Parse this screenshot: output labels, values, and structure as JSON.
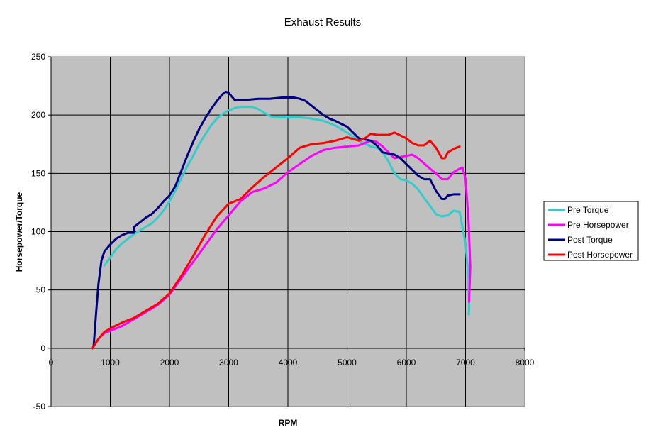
{
  "chart_data": {
    "type": "line",
    "title": "Exhaust Results",
    "xlabel": "RPM",
    "ylabel": "Horsepower/Torque",
    "xlim": [
      0,
      8000
    ],
    "ylim": [
      -50,
      250
    ],
    "x_ticks": [
      0,
      1000,
      2000,
      3000,
      4000,
      5000,
      6000,
      7000,
      8000
    ],
    "y_ticks": [
      -50,
      0,
      50,
      100,
      150,
      200,
      250
    ],
    "grid": true,
    "plot_background": "#c0c0c0",
    "legend_position": "right",
    "series": [
      {
        "name": "Pre Torque",
        "color": "#33cccc",
        "points": [
          [
            900,
            71
          ],
          [
            1000,
            78
          ],
          [
            1100,
            85
          ],
          [
            1200,
            90
          ],
          [
            1300,
            94
          ],
          [
            1400,
            98
          ],
          [
            1500,
            101
          ],
          [
            1600,
            104
          ],
          [
            1700,
            107
          ],
          [
            1800,
            112
          ],
          [
            1900,
            118
          ],
          [
            2000,
            126
          ],
          [
            2100,
            135
          ],
          [
            2200,
            146
          ],
          [
            2300,
            156
          ],
          [
            2400,
            165
          ],
          [
            2500,
            175
          ],
          [
            2600,
            183
          ],
          [
            2700,
            191
          ],
          [
            2800,
            197
          ],
          [
            2900,
            201
          ],
          [
            3000,
            204
          ],
          [
            3100,
            206
          ],
          [
            3200,
            207
          ],
          [
            3300,
            207
          ],
          [
            3400,
            207
          ],
          [
            3500,
            205
          ],
          [
            3600,
            202
          ],
          [
            3700,
            199
          ],
          [
            3800,
            198
          ],
          [
            4000,
            198
          ],
          [
            4200,
            198
          ],
          [
            4400,
            197
          ],
          [
            4600,
            195
          ],
          [
            4800,
            191
          ],
          [
            5000,
            185
          ],
          [
            5200,
            178
          ],
          [
            5400,
            173
          ],
          [
            5500,
            172
          ],
          [
            5600,
            168
          ],
          [
            5700,
            160
          ],
          [
            5800,
            150
          ],
          [
            5900,
            145
          ],
          [
            6000,
            144
          ],
          [
            6100,
            141
          ],
          [
            6200,
            136
          ],
          [
            6300,
            129
          ],
          [
            6400,
            122
          ],
          [
            6500,
            115
          ],
          [
            6600,
            113
          ],
          [
            6700,
            114
          ],
          [
            6800,
            118
          ],
          [
            6900,
            117
          ],
          [
            7000,
            90
          ],
          [
            7050,
            60
          ],
          [
            7060,
            35
          ],
          [
            7055,
            29
          ]
        ]
      },
      {
        "name": "Pre Horsepower",
        "color": "#ff00ff",
        "points": [
          [
            700,
            0
          ],
          [
            800,
            8
          ],
          [
            900,
            13
          ],
          [
            1000,
            15
          ],
          [
            1200,
            19
          ],
          [
            1400,
            25
          ],
          [
            1600,
            31
          ],
          [
            1800,
            37
          ],
          [
            2000,
            46
          ],
          [
            2200,
            60
          ],
          [
            2400,
            74
          ],
          [
            2600,
            88
          ],
          [
            2800,
            102
          ],
          [
            3000,
            114
          ],
          [
            3200,
            126
          ],
          [
            3400,
            134
          ],
          [
            3600,
            137
          ],
          [
            3800,
            142
          ],
          [
            4000,
            151
          ],
          [
            4200,
            158
          ],
          [
            4400,
            165
          ],
          [
            4600,
            170
          ],
          [
            4800,
            172
          ],
          [
            5000,
            173
          ],
          [
            5200,
            174
          ],
          [
            5400,
            178
          ],
          [
            5500,
            177
          ],
          [
            5600,
            173
          ],
          [
            5800,
            163
          ],
          [
            6000,
            165
          ],
          [
            6100,
            166
          ],
          [
            6200,
            163
          ],
          [
            6400,
            154
          ],
          [
            6500,
            150
          ],
          [
            6600,
            145
          ],
          [
            6700,
            145
          ],
          [
            6800,
            151
          ],
          [
            6900,
            154
          ],
          [
            6950,
            155
          ],
          [
            7000,
            145
          ],
          [
            7050,
            110
          ],
          [
            7080,
            70
          ],
          [
            7060,
            40
          ]
        ]
      },
      {
        "name": "Post Torque",
        "color": "#000080",
        "points": [
          [
            720,
            2
          ],
          [
            760,
            30
          ],
          [
            800,
            55
          ],
          [
            850,
            75
          ],
          [
            900,
            83
          ],
          [
            1000,
            89
          ],
          [
            1100,
            94
          ],
          [
            1200,
            97
          ],
          [
            1300,
            99
          ],
          [
            1400,
            99
          ],
          [
            1400,
            104
          ],
          [
            1500,
            108
          ],
          [
            1600,
            112
          ],
          [
            1700,
            115
          ],
          [
            1800,
            120
          ],
          [
            1900,
            126
          ],
          [
            2000,
            131
          ],
          [
            2100,
            139
          ],
          [
            2200,
            152
          ],
          [
            2300,
            165
          ],
          [
            2400,
            177
          ],
          [
            2500,
            188
          ],
          [
            2600,
            197
          ],
          [
            2700,
            205
          ],
          [
            2800,
            212
          ],
          [
            2900,
            218
          ],
          [
            2950,
            220
          ],
          [
            3000,
            219
          ],
          [
            3100,
            213
          ],
          [
            3300,
            213
          ],
          [
            3500,
            214
          ],
          [
            3700,
            214
          ],
          [
            3900,
            215
          ],
          [
            4000,
            215
          ],
          [
            4100,
            215
          ],
          [
            4200,
            214
          ],
          [
            4300,
            212
          ],
          [
            4400,
            208
          ],
          [
            4500,
            204
          ],
          [
            4600,
            200
          ],
          [
            4700,
            197
          ],
          [
            4800,
            195
          ],
          [
            5000,
            190
          ],
          [
            5100,
            185
          ],
          [
            5200,
            180
          ],
          [
            5400,
            178
          ],
          [
            5500,
            174
          ],
          [
            5600,
            168
          ],
          [
            5800,
            166
          ],
          [
            5900,
            163
          ],
          [
            6000,
            158
          ],
          [
            6100,
            153
          ],
          [
            6200,
            148
          ],
          [
            6300,
            145
          ],
          [
            6400,
            145
          ],
          [
            6500,
            135
          ],
          [
            6600,
            128
          ],
          [
            6650,
            128
          ],
          [
            6700,
            131
          ],
          [
            6800,
            132
          ],
          [
            6900,
            132
          ]
        ]
      },
      {
        "name": "Post Horsepower",
        "color": "#ff0000",
        "points": [
          [
            700,
            0
          ],
          [
            800,
            8
          ],
          [
            900,
            14
          ],
          [
            1000,
            17
          ],
          [
            1200,
            22
          ],
          [
            1400,
            26
          ],
          [
            1600,
            32
          ],
          [
            1800,
            38
          ],
          [
            2000,
            47
          ],
          [
            2200,
            62
          ],
          [
            2400,
            79
          ],
          [
            2600,
            97
          ],
          [
            2800,
            113
          ],
          [
            3000,
            124
          ],
          [
            3200,
            128
          ],
          [
            3400,
            138
          ],
          [
            3600,
            147
          ],
          [
            3800,
            155
          ],
          [
            4000,
            163
          ],
          [
            4200,
            172
          ],
          [
            4400,
            175
          ],
          [
            4600,
            176
          ],
          [
            4800,
            178
          ],
          [
            5000,
            181
          ],
          [
            5200,
            178
          ],
          [
            5300,
            180
          ],
          [
            5400,
            184
          ],
          [
            5500,
            183
          ],
          [
            5700,
            183
          ],
          [
            5800,
            185
          ],
          [
            6000,
            180
          ],
          [
            6100,
            176
          ],
          [
            6200,
            174
          ],
          [
            6300,
            174
          ],
          [
            6400,
            178
          ],
          [
            6500,
            172
          ],
          [
            6600,
            163
          ],
          [
            6650,
            163
          ],
          [
            6700,
            168
          ],
          [
            6800,
            171
          ],
          [
            6900,
            173
          ]
        ]
      }
    ]
  }
}
